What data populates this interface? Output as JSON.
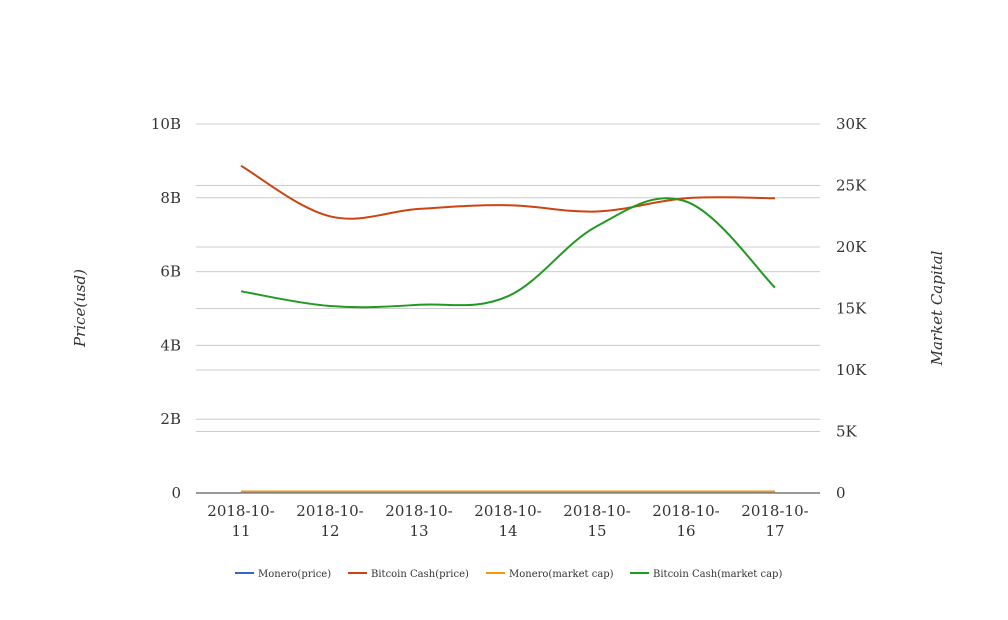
{
  "chart_data": {
    "type": "line",
    "categories": [
      "2018-10-11",
      "2018-10-12",
      "2018-10-13",
      "2018-10-14",
      "2018-10-15",
      "2018-10-16",
      "2018-10-17"
    ],
    "category_labels": [
      [
        "2018-10-",
        "11"
      ],
      [
        "2018-10-",
        "12"
      ],
      [
        "2018-10-",
        "13"
      ],
      [
        "2018-10-",
        "14"
      ],
      [
        "2018-10-",
        "15"
      ],
      [
        "2018-10-",
        "16"
      ],
      [
        "2018-10-",
        "17"
      ]
    ],
    "ylabel_left": "Price(usd)",
    "ylabel_right": "Market Capital",
    "y_left": {
      "ylim": [
        0,
        10000000000
      ],
      "ticks": [
        0,
        2000000000,
        4000000000,
        6000000000,
        8000000000,
        10000000000
      ],
      "tick_labels": [
        "0",
        "2B",
        "4B",
        "6B",
        "8B",
        "10B"
      ]
    },
    "y_right": {
      "ylim": [
        0,
        30000
      ],
      "ticks": [
        0,
        5000,
        10000,
        15000,
        20000,
        25000,
        30000
      ],
      "tick_labels": [
        "0",
        "5K",
        "10K",
        "15K",
        "20K",
        "25K",
        "30K"
      ]
    },
    "grid": true,
    "legend_position": "bottom",
    "series": [
      {
        "name": "Monero(price)",
        "axis": "left",
        "color": "#3366cc",
        "values": [
          20000000,
          20000000,
          20000000,
          20000000,
          20000000,
          20000000,
          20000000
        ]
      },
      {
        "name": "Bitcoin Cash(price)",
        "axis": "left",
        "color": "#cc4411",
        "values": [
          8870000000,
          7500000000,
          7700000000,
          7800000000,
          7630000000,
          7990000000,
          7990000000
        ]
      },
      {
        "name": "Monero(market cap)",
        "axis": "left",
        "color": "#ee9911",
        "values": [
          40000000,
          40000000,
          40000000,
          40000000,
          40000000,
          40000000,
          40000000
        ]
      },
      {
        "name": "Bitcoin Cash(market cap)",
        "axis": "right",
        "color": "#229922",
        "values": [
          16400,
          15200,
          15300,
          16000,
          21700,
          23700,
          16700
        ]
      }
    ]
  }
}
